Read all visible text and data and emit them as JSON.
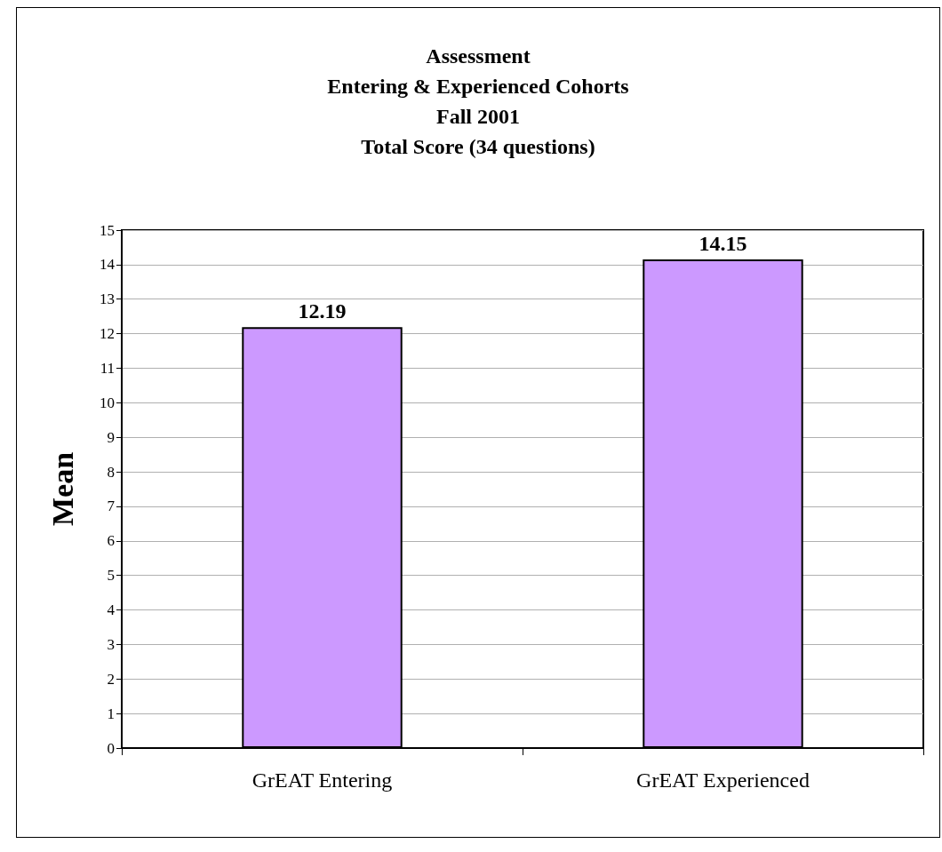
{
  "chart_data": {
    "type": "bar",
    "title": "Assessment\nEntering & Experienced Cohorts\nFall 2001\nTotal Score (34 questions)",
    "ylabel": "Mean",
    "categories": [
      "GrEAT Entering",
      "GrEAT Experienced"
    ],
    "values": [
      12.19,
      14.15
    ],
    "color": "#cc99ff",
    "ylim": [
      0,
      15
    ],
    "yticks": [
      0,
      1,
      2,
      3,
      4,
      5,
      6,
      7,
      8,
      9,
      10,
      11,
      12,
      13,
      14,
      15
    ],
    "grid": "y",
    "data_labels": true
  }
}
